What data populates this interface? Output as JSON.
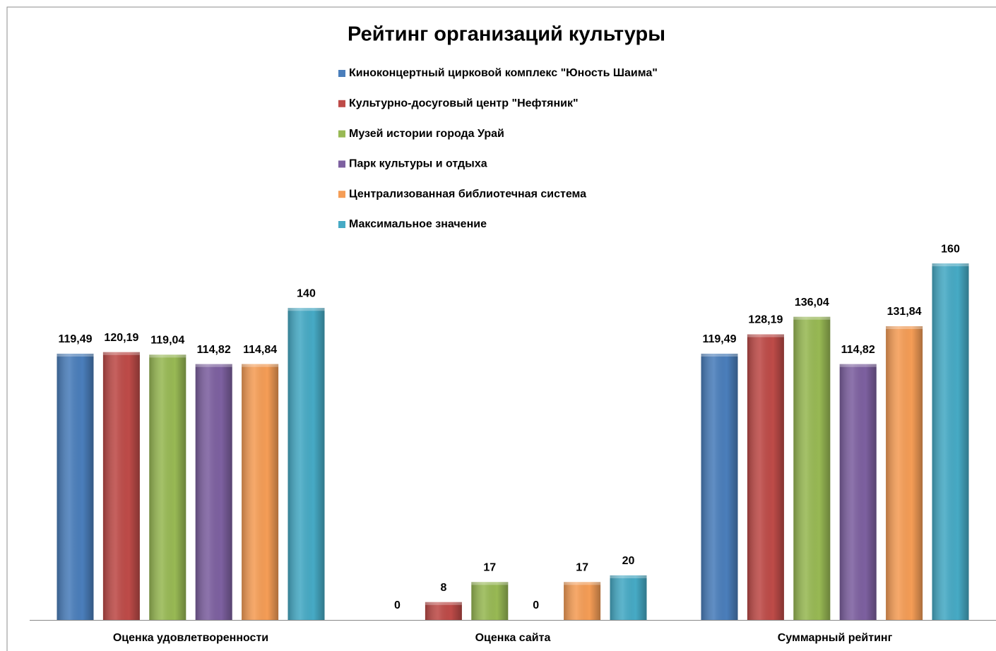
{
  "chart_data": {
    "type": "bar",
    "title": "Рейтинг организаций культуры",
    "categories": [
      "Оценка удовлетворенности",
      "Оценка сайта",
      "Суммарный рейтинг"
    ],
    "series": [
      {
        "name": "Киноконцертный цирковой комплекс \"Юность Шаима\"",
        "color": "#4a7ebb",
        "values": [
          119.49,
          0,
          119.49
        ],
        "value_labels": [
          "119,49",
          "0",
          "119,49"
        ]
      },
      {
        "name": "Культурно-досуговый центр \"Нефтяник\"",
        "color": "#be4b48",
        "values": [
          120.19,
          8,
          128.19
        ],
        "value_labels": [
          "120,19",
          "8",
          "128,19"
        ]
      },
      {
        "name": "Музей истории города  Урай",
        "color": "#98b954",
        "values": [
          119.04,
          17,
          136.04
        ],
        "value_labels": [
          "119,04",
          "17",
          "136,04"
        ]
      },
      {
        "name": "Парк культуры и отдыха",
        "color": "#7d60a0",
        "values": [
          114.82,
          0,
          114.82
        ],
        "value_labels": [
          "114,82",
          "0",
          "114,82"
        ]
      },
      {
        "name": "Централизованная библиотечная система",
        "color": "#f59d56",
        "values": [
          114.84,
          17,
          131.84
        ],
        "value_labels": [
          "114,84",
          "17",
          "131,84"
        ]
      },
      {
        "name": "Максимальное значение",
        "color": "#46aac5",
        "values": [
          140,
          20,
          160
        ],
        "value_labels": [
          "140",
          "20",
          "160"
        ]
      }
    ],
    "ylim": [
      0,
      180
    ],
    "legend": "top"
  }
}
